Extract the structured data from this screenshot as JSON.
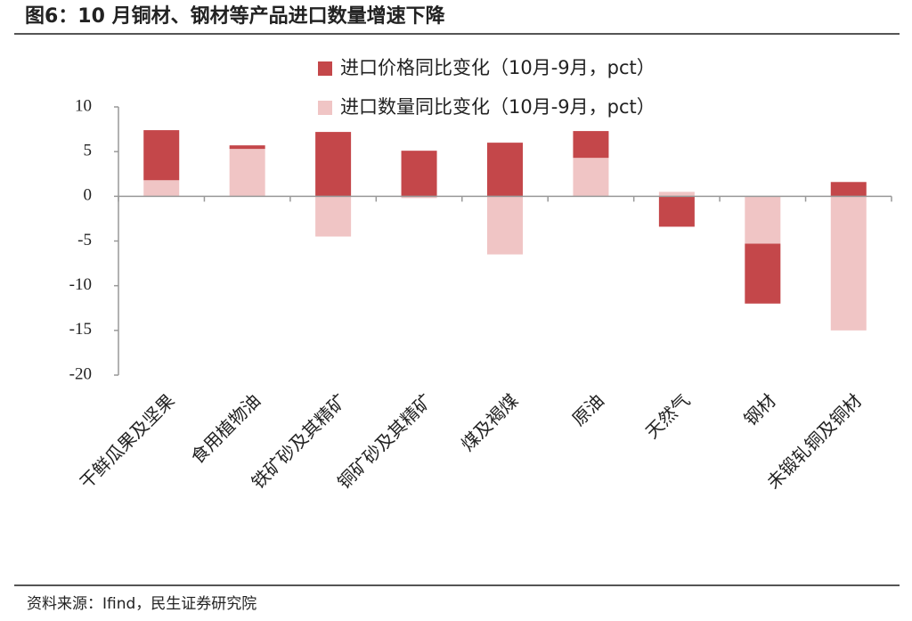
{
  "chart_data": {
    "type": "bar",
    "stacked": true,
    "title": "图6：10 月铜材、钢材等产品进口数量增速下降",
    "source": "资料来源：Ifind，民生证券研究院",
    "categories": [
      "干鲜瓜果及坚果",
      "食用植物油",
      "铁矿砂及其精矿",
      "铜矿砂及其精矿",
      "煤及褐煤",
      "原油",
      "天然气",
      "钢材",
      "未锻轧铜及铜材"
    ],
    "series": [
      {
        "name": "进口价格同比变化（10月-9月，pct）",
        "color": "#c4474a",
        "values": [
          5.6,
          0.4,
          7.2,
          5.1,
          6.0,
          3.0,
          -3.4,
          -6.7,
          1.6
        ]
      },
      {
        "name": "进口数量同比变化（10月-9月，pct）",
        "color": "#f0c5c5",
        "values": [
          1.8,
          5.3,
          -4.5,
          -0.2,
          -6.5,
          4.3,
          0.5,
          -5.3,
          -15.0
        ]
      }
    ],
    "ylim": [
      -20,
      10
    ],
    "yticks": [
      -20,
      -15,
      -10,
      -5,
      0,
      5,
      10
    ],
    "legend": "top"
  }
}
